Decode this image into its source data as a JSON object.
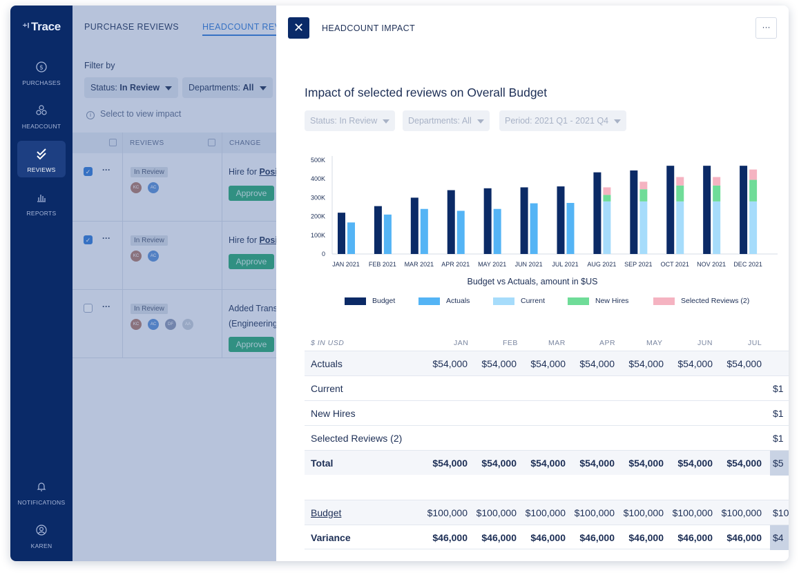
{
  "app": {
    "logo": "Trace"
  },
  "sidebar": {
    "items": [
      {
        "label": "PURCHASES",
        "icon": "dollar-icon"
      },
      {
        "label": "HEADCOUNT",
        "icon": "people-icon"
      },
      {
        "label": "REVIEWS",
        "icon": "check-icon",
        "active": true
      },
      {
        "label": "REPORTS",
        "icon": "bar-chart-icon"
      },
      {
        "label": "NOTIFICATIONS",
        "icon": "bell-icon"
      },
      {
        "label": "KAREN",
        "icon": "user-icon"
      }
    ]
  },
  "background": {
    "tabs": [
      "PURCHASE REVIEWS",
      "HEADCOUNT REVIEWS"
    ],
    "filter_label": "Filter by",
    "filters": [
      {
        "label": "Status:",
        "value": "In Review"
      },
      {
        "label": "Departments:",
        "value": "All"
      }
    ],
    "hint": "Select to view impact",
    "columns": [
      "REVIEWS",
      "CHANGE"
    ],
    "rows": [
      {
        "checked": true,
        "status": "In Review",
        "text_prefix": "Hire for ",
        "text_link": "Posi",
        "text2": "",
        "action": "Approve",
        "avatars": [
          "KC",
          "AC"
        ]
      },
      {
        "checked": true,
        "status": "In Review",
        "text_prefix": "Hire for ",
        "text_link": "Posi",
        "text2": "",
        "action": "Approve",
        "avatars": [
          "KC",
          "AC"
        ]
      },
      {
        "checked": false,
        "status": "In Review",
        "text_prefix": "Added Trans",
        "text_link": "",
        "text2": "(Engineering",
        "action": "Approve",
        "avatars": [
          "KC",
          "AC",
          "DF",
          "AA"
        ]
      }
    ]
  },
  "panel": {
    "title": "HEADCOUNT IMPACT",
    "close_icon": "close-icon",
    "more_label": "···",
    "heading": "Impact of selected reviews on Overall Budget",
    "filters": [
      {
        "label": "Status:",
        "value": "In Review"
      },
      {
        "label": "Departments:",
        "value": "All"
      },
      {
        "label": "Period:",
        "value": "2021 Q1 - 2021 Q4"
      }
    ],
    "chart_caption": "Budget vs Actuals, amount in $US"
  },
  "chart_data": {
    "type": "bar",
    "categories": [
      "JAN 2021",
      "FEB 2021",
      "MAR 2021",
      "APR 2021",
      "MAY 2021",
      "JUN 2021",
      "JUL 2021",
      "AUG 2021",
      "SEP 2021",
      "OCT 2021",
      "NOV 2021",
      "DEC 2021"
    ],
    "y_ticks": [
      "0",
      "100K",
      "200K",
      "300K",
      "400K",
      "500K"
    ],
    "ylim": [
      0,
      500000
    ],
    "grid": false,
    "legend_position": "bottom",
    "series": [
      {
        "name": "Budget",
        "color": "#0b2a66",
        "values": [
          220000,
          255000,
          300000,
          340000,
          350000,
          355000,
          360000,
          435000,
          445000,
          470000,
          470000,
          470000
        ]
      },
      {
        "name": "Actuals",
        "color": "#54b4f5",
        "values": [
          168000,
          210000,
          240000,
          230000,
          240000,
          270000,
          272000,
          0,
          0,
          0,
          0,
          0
        ]
      },
      {
        "name": "Current",
        "color": "#a6dcfb",
        "values": [
          0,
          0,
          0,
          0,
          0,
          0,
          0,
          280000,
          280000,
          280000,
          280000,
          280000
        ]
      },
      {
        "name": "New Hires",
        "color": "#6fdc98",
        "values": [
          0,
          0,
          0,
          0,
          0,
          0,
          0,
          35000,
          65000,
          85000,
          85000,
          115000
        ]
      },
      {
        "name": "Selected Reviews (2)",
        "color": "#f5b3c1",
        "values": [
          0,
          0,
          0,
          0,
          0,
          0,
          0,
          40000,
          40000,
          45000,
          45000,
          55000
        ]
      }
    ]
  },
  "table": {
    "unit_label": "$ IN USD",
    "months": [
      "JAN",
      "FEB",
      "MAR",
      "APR",
      "MAY",
      "JUN",
      "JUL"
    ],
    "rows": [
      {
        "label": "Actuals",
        "values": [
          "$54,000",
          "$54,000",
          "$54,000",
          "$54,000",
          "$54,000",
          "$54,000",
          "$54,000"
        ],
        "cut": "",
        "shade": true,
        "bold": false
      },
      {
        "label": "Current",
        "values": [
          "",
          "",
          "",
          "",
          "",
          "",
          ""
        ],
        "cut": "$1",
        "shade": false,
        "bold": false
      },
      {
        "label": "New Hires",
        "values": [
          "",
          "",
          "",
          "",
          "",
          "",
          ""
        ],
        "cut": "$1",
        "shade": false,
        "bold": false
      },
      {
        "label": "Selected Reviews (2)",
        "values": [
          "",
          "",
          "",
          "",
          "",
          "",
          ""
        ],
        "cut": "$1",
        "shade": false,
        "bold": false
      },
      {
        "label": "Total",
        "values": [
          "$54,000",
          "$54,000",
          "$54,000",
          "$54,000",
          "$54,000",
          "$54,000",
          "$54,000"
        ],
        "cut": "$5",
        "shade": true,
        "bold": true
      },
      {
        "label": "Budget",
        "values": [
          "$100,000",
          "$100,000",
          "$100,000",
          "$100,000",
          "$100,000",
          "$100,000",
          "$100,000"
        ],
        "cut": "$10",
        "shade": true,
        "bold": false
      },
      {
        "label": "Variance",
        "values": [
          "$46,000",
          "$46,000",
          "$46,000",
          "$46,000",
          "$46,000",
          "$46,000",
          "$46,000"
        ],
        "cut": "$4",
        "shade": false,
        "bold": true
      }
    ]
  }
}
